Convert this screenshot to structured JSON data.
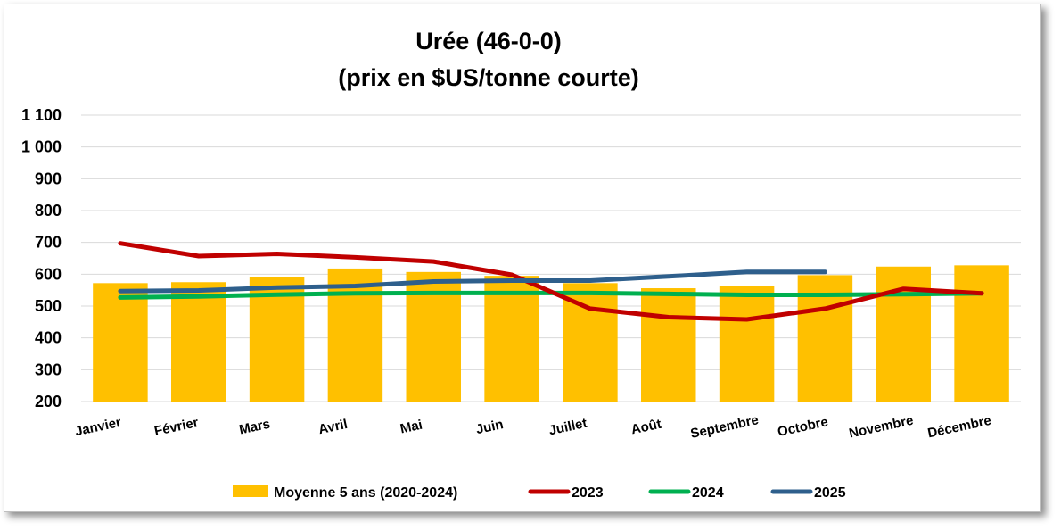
{
  "chart_data": {
    "type": "bar",
    "title_lines": [
      "Urée (46-0-0)",
      "(prix en $US/tonne courte)"
    ],
    "categories": [
      "Janvier",
      "Février",
      "Mars",
      "Avril",
      "Mai",
      "Juin",
      "Juillet",
      "Août",
      "Septembre",
      "Octobre",
      "Novembre",
      "Décembre"
    ],
    "ylim": [
      200,
      1100
    ],
    "yticks": [
      200,
      300,
      400,
      500,
      600,
      700,
      800,
      900,
      1000,
      1100
    ],
    "ytick_labels": [
      "200",
      "300",
      "400",
      "500",
      "600",
      "700",
      "800",
      "900",
      "1 000",
      "1 100"
    ],
    "grid": true,
    "legend_position": "bottom",
    "bars": {
      "name": "Moyenne 5 ans (2020-2024)",
      "color": "#FFC000",
      "values": [
        572,
        575,
        590,
        618,
        607,
        595,
        572,
        556,
        563,
        597,
        624,
        628
      ]
    },
    "series": [
      {
        "name": "2023",
        "type": "line",
        "color": "#C00000",
        "values": [
          697,
          657,
          664,
          653,
          640,
          598,
          492,
          465,
          458,
          492,
          554,
          540
        ]
      },
      {
        "name": "2024",
        "type": "line",
        "color": "#00B050",
        "values": [
          527,
          530,
          536,
          540,
          541,
          541,
          541,
          538,
          535,
          535,
          537,
          540
        ]
      },
      {
        "name": "2025",
        "type": "line",
        "color": "#2E5F8C",
        "values": [
          547,
          549,
          558,
          563,
          577,
          580,
          580,
          593,
          607,
          607,
          null,
          null
        ]
      }
    ]
  }
}
